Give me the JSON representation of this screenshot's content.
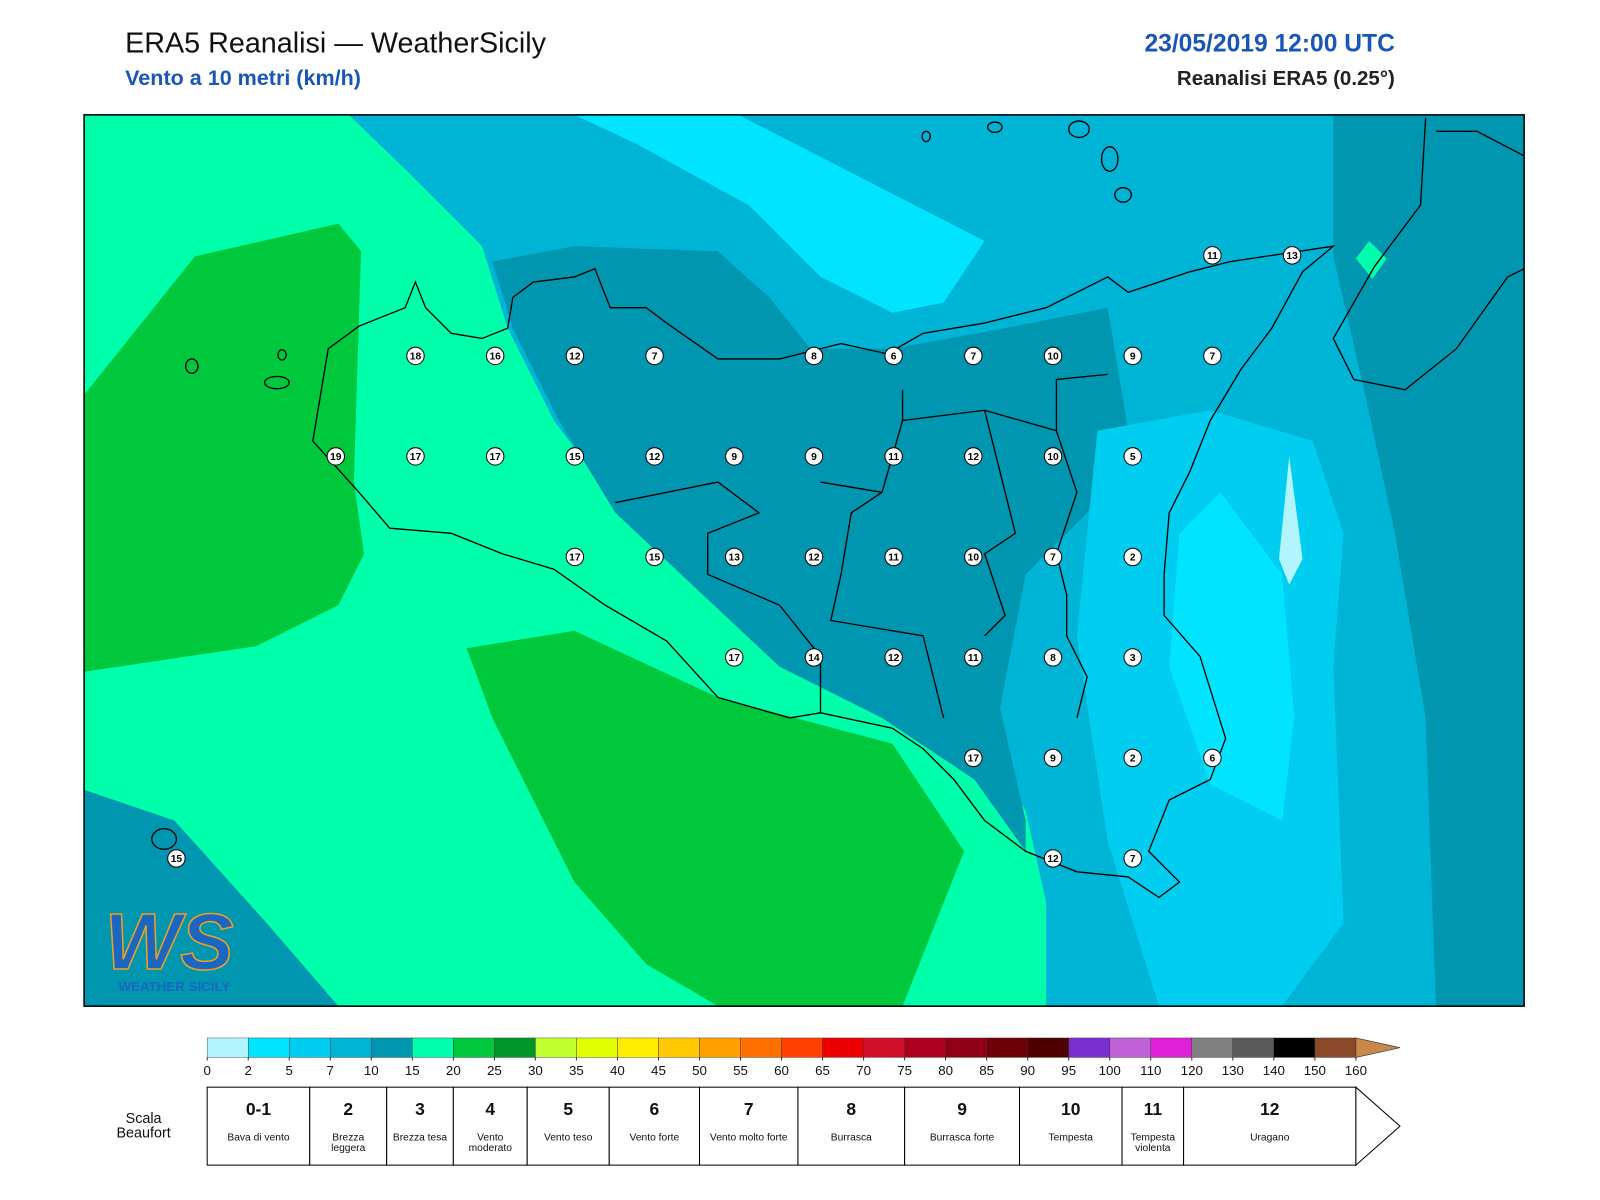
{
  "header": {
    "title": "ERA5 Reanalisi — WeatherSicily",
    "subtitle": "Vento a 10 metri (km/h)",
    "datetime": "23/05/2019 12:00 UTC",
    "source": "Reanalisi ERA5 (0.25°)"
  },
  "stations": [
    11,
    13,
    18,
    16,
    12,
    7,
    8,
    6,
    7,
    10,
    9,
    7,
    19,
    17,
    17,
    15,
    12,
    9,
    9,
    11,
    12,
    10,
    5,
    17,
    15,
    13,
    12,
    11,
    10,
    7,
    2,
    17,
    14,
    12,
    11,
    8,
    3,
    17,
    9,
    2,
    6,
    15,
    12,
    7
  ],
  "legend": {
    "ticks": [
      0,
      2,
      5,
      7,
      10,
      15,
      20,
      25,
      30,
      35,
      40,
      45,
      50,
      55,
      60,
      65,
      70,
      75,
      80,
      85,
      90,
      95,
      100,
      110,
      120,
      130,
      140,
      150,
      160
    ],
    "colors": [
      "#b3f5ff",
      "#00e4ff",
      "#00cdf0",
      "#00b4d6",
      "#0096b0",
      "#00ffaa",
      "#00c83c",
      "#00962a",
      "#c0ff30",
      "#e2ff00",
      "#ffee00",
      "#ffc800",
      "#ffa000",
      "#ff7000",
      "#ff4000",
      "#ee0000",
      "#d0102a",
      "#b00020",
      "#900014",
      "#700008",
      "#500000",
      "#7c2fd0",
      "#c060d8",
      "#e020d8",
      "#808080",
      "#5a5a5a",
      "#000000",
      "#8a4a2a",
      "#c8884a"
    ]
  },
  "beaufort": {
    "label": "Scala Beaufort",
    "levels": [
      {
        "force": "0-1",
        "name": "Bava di vento"
      },
      {
        "force": "2",
        "name": "Brezza leggera"
      },
      {
        "force": "3",
        "name": "Brezza tesa"
      },
      {
        "force": "4",
        "name": "Vento moderato"
      },
      {
        "force": "5",
        "name": "Vento teso"
      },
      {
        "force": "6",
        "name": "Vento forte"
      },
      {
        "force": "7",
        "name": "Vento molto forte"
      },
      {
        "force": "8",
        "name": "Burrasca"
      },
      {
        "force": "9",
        "name": "Burrasca forte"
      },
      {
        "force": "10",
        "name": "Tempesta"
      },
      {
        "force": "11",
        "name": "Tempesta violenta"
      },
      {
        "force": "12",
        "name": "Uragano"
      }
    ]
  },
  "logo": {
    "mark": "WS",
    "text": "WEATHER SICILY"
  }
}
